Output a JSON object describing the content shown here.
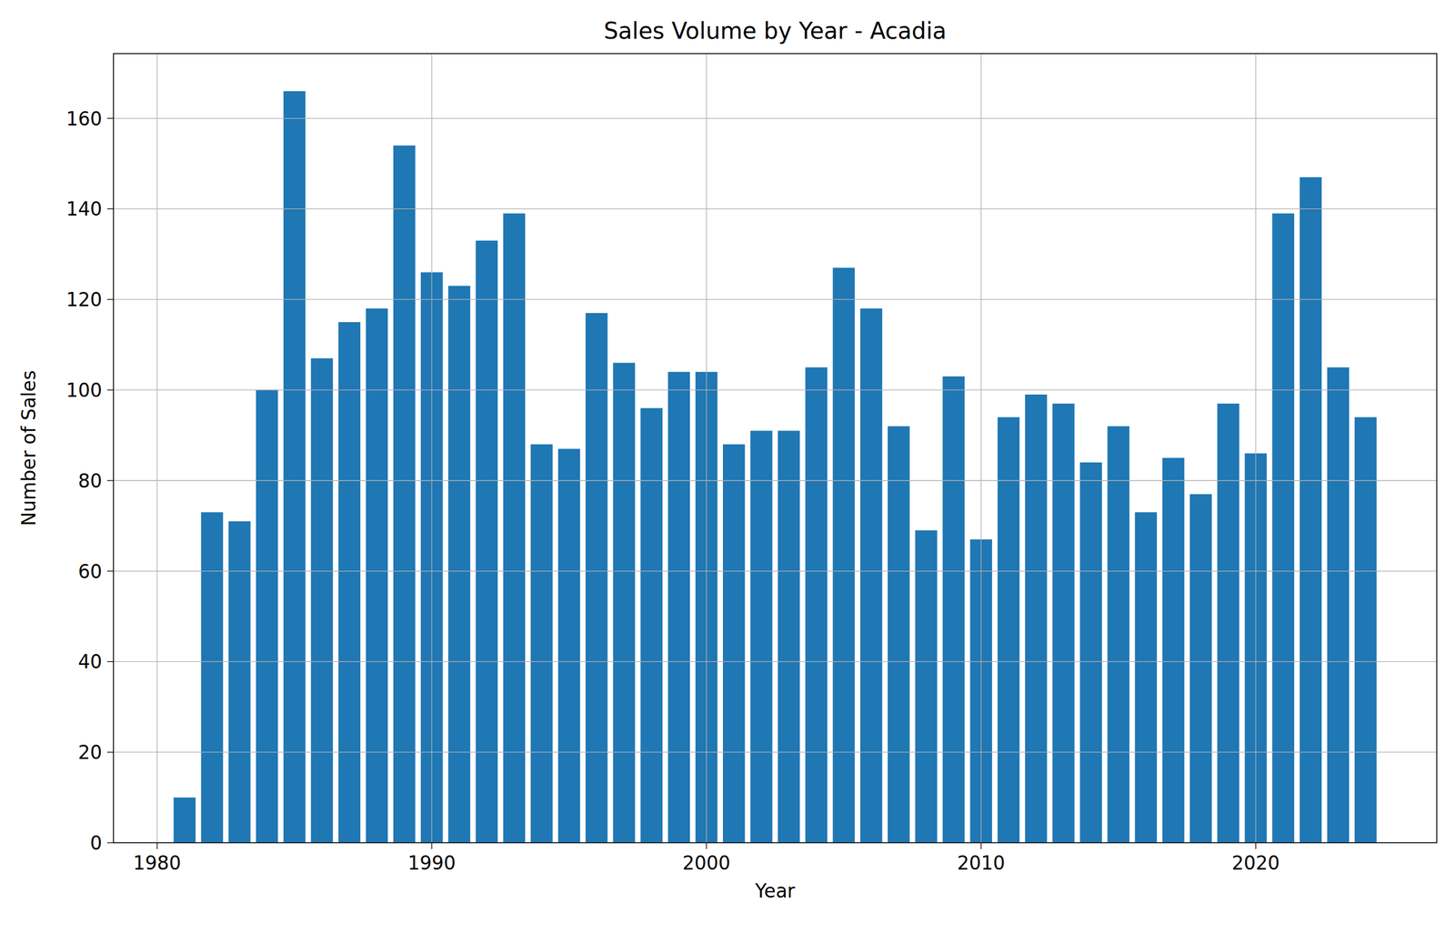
{
  "chart_data": {
    "type": "bar",
    "title": "Sales Volume by Year - Acadia",
    "x_label": "Year",
    "y_label": "Number of Sales",
    "x": [
      1981,
      1982,
      1983,
      1984,
      1985,
      1986,
      1987,
      1988,
      1989,
      1990,
      1991,
      1992,
      1993,
      1994,
      1995,
      1996,
      1997,
      1998,
      1999,
      2000,
      2001,
      2002,
      2003,
      2004,
      2005,
      2006,
      2007,
      2008,
      2009,
      2010,
      2011,
      2012,
      2013,
      2014,
      2015,
      2016,
      2017,
      2018,
      2019,
      2020,
      2021,
      2022,
      2023,
      2024
    ],
    "values": [
      10,
      73,
      71,
      100,
      166,
      107,
      115,
      118,
      154,
      126,
      123,
      133,
      139,
      88,
      87,
      117,
      106,
      96,
      104,
      104,
      88,
      91,
      91,
      105,
      127,
      118,
      92,
      69,
      103,
      67,
      94,
      99,
      97,
      84,
      92,
      73,
      85,
      77,
      97,
      86,
      139,
      147,
      105,
      94
    ],
    "color": "#1f77b4",
    "xlim": [
      1978.41,
      2026.59
    ],
    "xticks": [
      1980,
      1990,
      2000,
      2010,
      2020
    ],
    "ylim": [
      0,
      174.3
    ],
    "yticks": [
      0,
      20,
      40,
      60,
      80,
      100,
      120,
      140,
      160
    ],
    "grid": true
  }
}
